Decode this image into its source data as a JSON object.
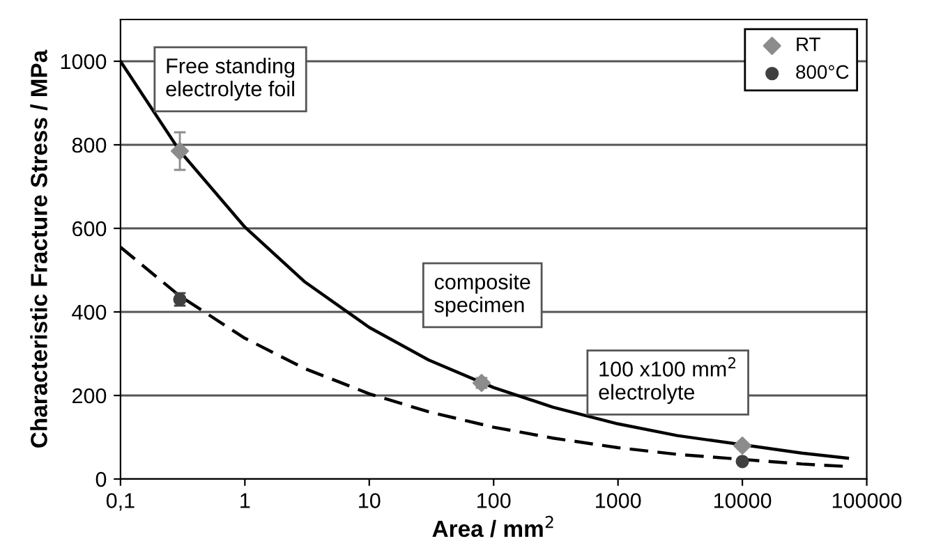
{
  "chart_data": {
    "type": "scatter",
    "xlabel": "Area / mm$^{2}$",
    "ylabel": "Characteristic Fracture Stress / MPa",
    "log": "x",
    "xlim": [
      0.1,
      100000
    ],
    "ylim": [
      0,
      1100
    ],
    "xticks": [
      {
        "value": 0.1,
        "label": "0,1"
      },
      1,
      10,
      100,
      1000,
      10000,
      100000
    ],
    "yticks": [
      0,
      200,
      400,
      600,
      800,
      1000
    ],
    "grid": "y",
    "legend": "top right",
    "series": [
      {
        "name": "RT",
        "marker": "diamond",
        "color": "#8c8c8c",
        "x": [
          0.3,
          80,
          10000
        ],
        "values": [
          785,
          230,
          80
        ],
        "errors": [
          45,
          12,
          null
        ]
      },
      {
        "name": "800°C",
        "marker": "circle",
        "color": "#404040",
        "x": [
          0.3,
          10000
        ],
        "values": [
          430,
          42
        ],
        "errors": [
          15,
          null
        ]
      },
      {
        "type": "line",
        "line_style": "solid",
        "color": "#000000",
        "x": [
          0.1,
          0.3,
          1,
          3,
          10,
          30,
          100,
          300,
          1000,
          3000,
          30000,
          70000
        ],
        "values": [
          1000,
          785,
          603,
          473,
          363,
          285,
          219,
          172,
          132,
          104,
          62,
          50
        ]
      },
      {
        "type": "line",
        "line_style": "dashed",
        "color": "#000000",
        "x": [
          0.1,
          0.3,
          1,
          3,
          10,
          30,
          100,
          300,
          1000,
          3000,
          30000,
          70000
        ],
        "values": [
          555,
          438,
          337,
          265,
          204,
          161,
          124,
          98,
          75,
          59,
          36,
          30
        ]
      }
    ],
    "annotations": [
      "Free standing\nelectrolyte foil",
      "composite\nspecimen",
      "100 x100 mm$^{2}$\nelectrolyte"
    ]
  }
}
